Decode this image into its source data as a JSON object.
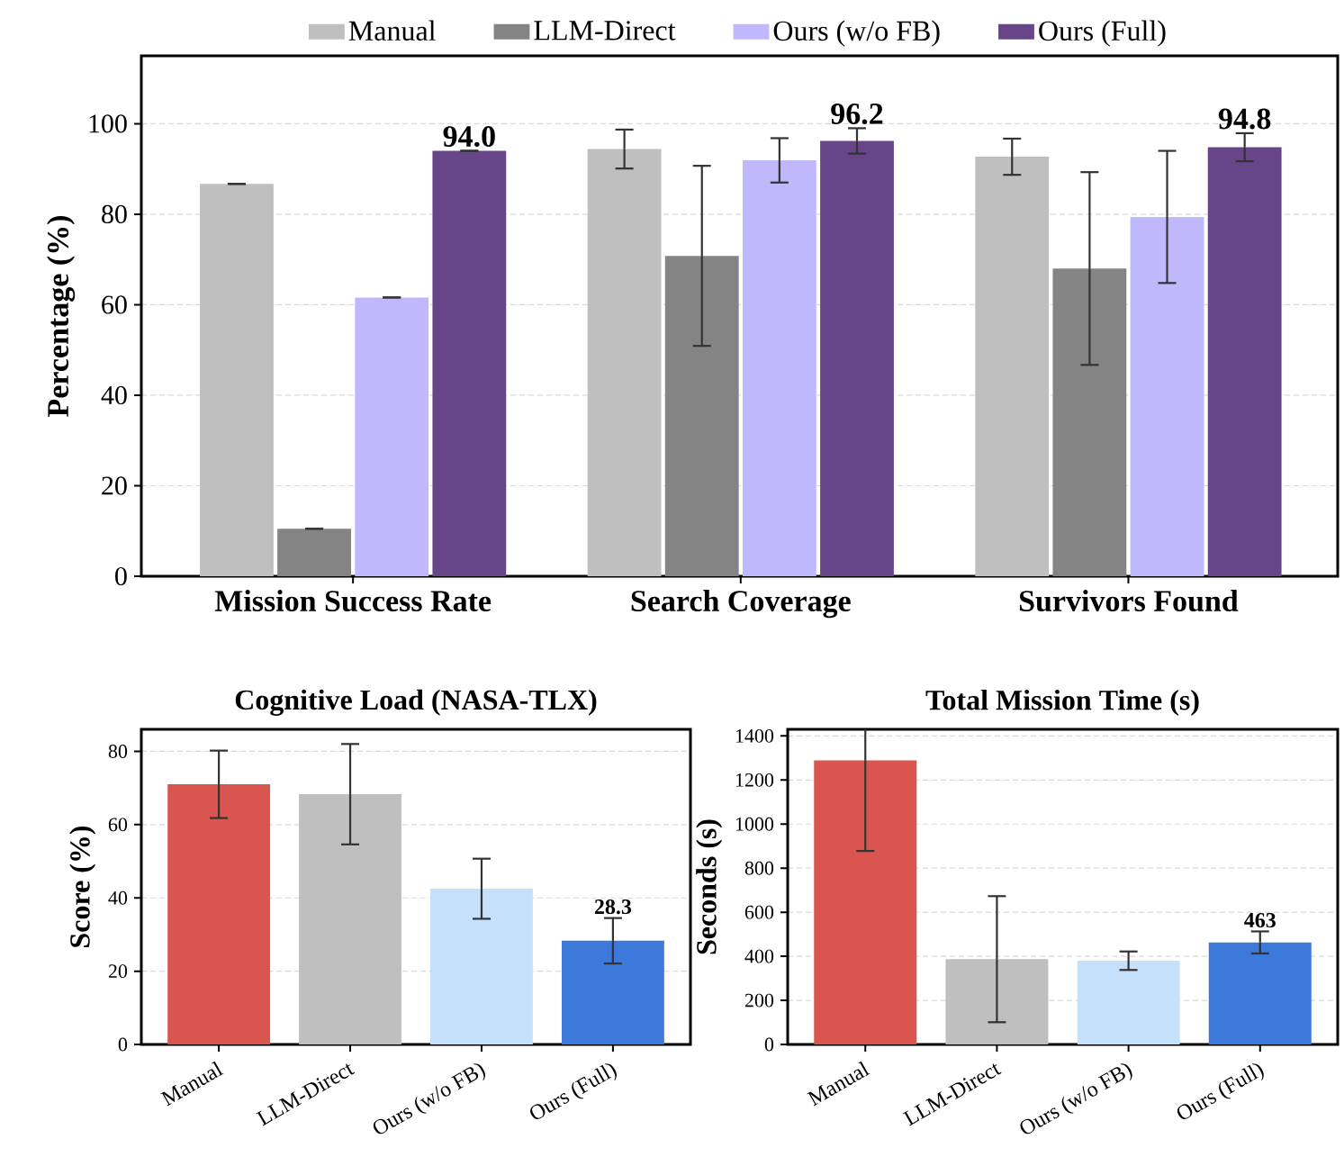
{
  "chart_data": [
    {
      "type": "bar",
      "categories": [
        "Mission Success Rate",
        "Search Coverage",
        "Survivors Found"
      ],
      "ylabel": "Percentage (%)",
      "ylim": [
        0,
        115
      ],
      "yticks": [
        0,
        20,
        40,
        60,
        80,
        100
      ],
      "grid": "y",
      "legend": "top",
      "series": [
        {
          "name": "Manual",
          "color": "#bfbfbf",
          "values": [
            86.7,
            94.4,
            92.7
          ],
          "errors": [
            0,
            4.3,
            4.0
          ]
        },
        {
          "name": "LLM-Direct",
          "color": "#848484",
          "values": [
            10.5,
            70.8,
            68.0
          ],
          "errors": [
            0,
            19.9,
            21.3
          ]
        },
        {
          "name": "Ours (w/o FB)",
          "color": "#c0b8fc",
          "values": [
            61.6,
            91.9,
            79.4
          ],
          "errors": [
            0,
            4.9,
            14.6
          ]
        },
        {
          "name": "Ours (Full)",
          "color": "#684489",
          "values": [
            94.0,
            96.2,
            94.8
          ],
          "errors": [
            0,
            2.8,
            3.1
          ],
          "value_labels": [
            "94.0",
            "96.2",
            "94.8"
          ]
        }
      ]
    },
    {
      "type": "bar",
      "title": "Cognitive Load (NASA-TLX)",
      "ylabel": "Score (%)",
      "categories": [
        "Manual",
        "LLM-Direct",
        "Ours (w/o FB)",
        "Ours (Full)"
      ],
      "ylim": [
        0,
        86
      ],
      "yticks": [
        0,
        20,
        40,
        60,
        80
      ],
      "grid": "y",
      "values": [
        71.0,
        68.3,
        42.5,
        28.3
      ],
      "errors": [
        9.2,
        13.7,
        8.2,
        6.2
      ],
      "value_labels": [
        null,
        null,
        null,
        "28.3"
      ],
      "colors": [
        "#da5550",
        "#bfbfbf",
        "#c5e0fb",
        "#3d79db"
      ]
    },
    {
      "type": "bar",
      "title": "Total Mission Time (s)",
      "ylabel": "Seconds (s)",
      "categories": [
        "Manual",
        "LLM-Direct",
        "Ours (w/o FB)",
        "Ours (Full)"
      ],
      "ylim": [
        0,
        1430
      ],
      "yticks": [
        0,
        200,
        400,
        600,
        800,
        1000,
        1200,
        1400
      ],
      "grid": "y",
      "values": [
        1289,
        387,
        380,
        463
      ],
      "errors": [
        411,
        286,
        42,
        50
      ],
      "value_labels": [
        null,
        null,
        null,
        "463"
      ],
      "colors": [
        "#da5550",
        "#bfbfbf",
        "#c5e0fb",
        "#3d79db"
      ]
    }
  ]
}
